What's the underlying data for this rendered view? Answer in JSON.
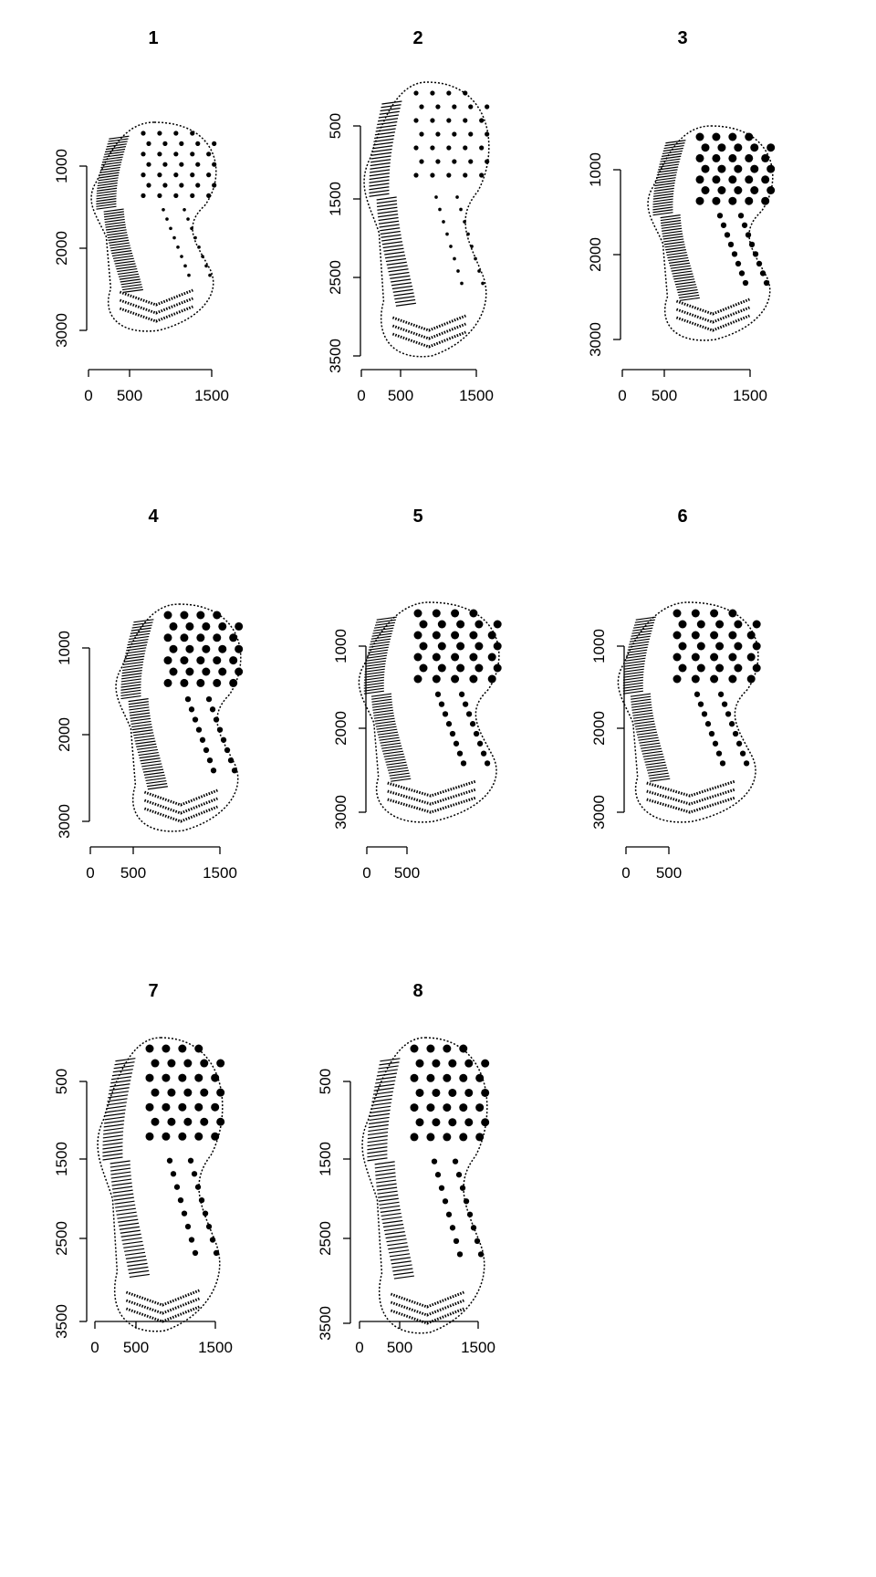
{
  "chart_data": [
    {
      "type": "scatter",
      "title": "1",
      "xticks": [
        "0",
        "500",
        "1500"
      ],
      "yticks": [
        "1000",
        "2000",
        "3000"
      ],
      "xlim": [
        0,
        1500
      ],
      "ylim": [
        500,
        3000
      ],
      "y_reversed": true
    },
    {
      "type": "scatter",
      "title": "2",
      "xticks": [
        "0",
        "500",
        "1500"
      ],
      "yticks": [
        "500",
        "1500",
        "2500",
        "3500"
      ],
      "xlim": [
        0,
        1500
      ],
      "ylim": [
        500,
        3500
      ],
      "y_reversed": true
    },
    {
      "type": "scatter",
      "title": "3",
      "xticks": [
        "0",
        "500",
        "1500"
      ],
      "yticks": [
        "1000",
        "2000",
        "3000"
      ],
      "xlim": [
        0,
        1500
      ],
      "ylim": [
        500,
        3000
      ],
      "y_reversed": true
    },
    {
      "type": "scatter",
      "title": "4",
      "xticks": [
        "0",
        "500",
        "1500"
      ],
      "yticks": [
        "1000",
        "2000",
        "3000"
      ],
      "xlim": [
        0,
        1500
      ],
      "ylim": [
        500,
        3000
      ],
      "y_reversed": true
    },
    {
      "type": "scatter",
      "title": "5",
      "xticks": [
        "0",
        "500"
      ],
      "yticks": [
        "1000",
        "2000",
        "3000"
      ],
      "xlim": [
        0,
        1000
      ],
      "ylim": [
        500,
        3000
      ],
      "y_reversed": true
    },
    {
      "type": "scatter",
      "title": "6",
      "xticks": [
        "0",
        "500"
      ],
      "yticks": [
        "1000",
        "2000",
        "3000"
      ],
      "xlim": [
        0,
        1000
      ],
      "ylim": [
        500,
        3000
      ],
      "y_reversed": true
    },
    {
      "type": "scatter",
      "title": "7",
      "xticks": [
        "0",
        "500",
        "1500"
      ],
      "yticks": [
        "500",
        "1500",
        "2500",
        "3500"
      ],
      "xlim": [
        0,
        1500
      ],
      "ylim": [
        500,
        3500
      ],
      "y_reversed": true
    },
    {
      "type": "scatter",
      "title": "8",
      "xticks": [
        "0",
        "500",
        "1500"
      ],
      "yticks": [
        "500",
        "1500",
        "2500",
        "3500"
      ],
      "xlim": [
        0,
        1500
      ],
      "ylim": [
        500,
        3500
      ],
      "y_reversed": true
    }
  ],
  "colors": {
    "ink": "#000000",
    "background": "#ffffff"
  }
}
